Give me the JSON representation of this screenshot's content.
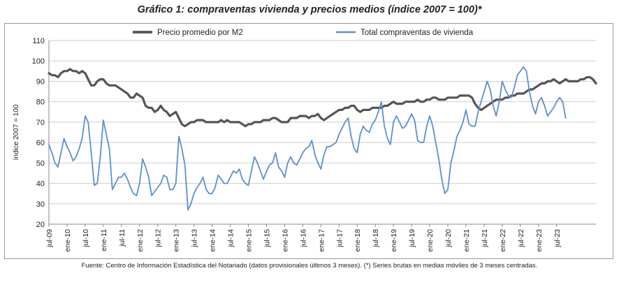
{
  "figure": {
    "title": "Gráfico 1: compraventas vivienda y precios medios (índice 2007 = 100)*",
    "footnote": "Fuente: Centro de Información Estadística del Notariado (datos provisionales últimos 3 meses). (*) Series brutas en medias móviles de 3 meses centradas."
  },
  "colors": {
    "price": "#555555",
    "sales": "#5b8fd1",
    "grid": "#cfcfcf",
    "axis": "#8a8a8a",
    "text": "#222222"
  },
  "chart_data": {
    "type": "line",
    "title": "Gráfico 1: compraventas vivienda y precios medios (índice 2007 = 100)*",
    "ylabel": "índice 2007 = 100",
    "xlabel": "",
    "ylim": [
      20,
      110
    ],
    "yticks": [
      20,
      30,
      40,
      50,
      60,
      70,
      80,
      90,
      100,
      110
    ],
    "grid": "horizontal",
    "legend_position": "top",
    "x_start": "jul-09",
    "x_end": "jul-23",
    "x_tick_labels": [
      "jul-09",
      "ene-10",
      "jul-10",
      "ene-11",
      "jul-11",
      "ene-12",
      "jul-12",
      "ene-13",
      "jul-13",
      "ene-14",
      "jul-14",
      "ene-15",
      "jul-15",
      "ene-16",
      "jul-16",
      "ene-17",
      "jul-17",
      "ene-18",
      "jul-18",
      "ene-19",
      "jul-19",
      "ene-20",
      "jul-20",
      "ene-21",
      "jul-21",
      "ene-22",
      "jul-22",
      "ene-23",
      "jul-23"
    ],
    "series": [
      {
        "name": "Precio promedio por M2",
        "color": "#555555",
        "values": [
          94,
          93,
          93,
          92,
          94,
          95,
          95,
          96,
          95,
          95,
          94,
          95,
          94,
          91,
          88,
          88,
          90,
          91,
          91,
          89,
          88,
          88,
          88,
          87,
          86,
          85,
          84,
          82,
          82,
          84,
          83,
          82,
          78,
          77,
          77,
          75,
          76,
          78,
          76,
          75,
          73,
          74,
          75,
          72,
          69,
          68,
          69,
          70,
          70,
          71,
          71,
          71,
          70,
          70,
          70,
          70,
          70,
          71,
          70,
          71,
          70,
          70,
          70,
          70,
          69,
          68,
          69,
          69,
          70,
          70,
          70,
          71,
          71,
          71,
          72,
          72,
          71,
          70,
          70,
          70,
          72,
          72,
          72,
          73,
          73,
          73,
          72,
          73,
          73,
          74,
          72,
          71,
          72,
          73,
          74,
          75,
          76,
          76,
          77,
          77,
          78,
          78,
          76,
          75,
          76,
          76,
          76,
          77,
          77,
          77,
          77,
          78,
          78,
          79,
          80,
          79,
          79,
          79,
          80,
          80,
          80,
          80,
          81,
          80,
          80,
          81,
          81,
          82,
          82,
          81,
          81,
          81,
          82,
          82,
          82,
          82,
          83,
          83,
          83,
          83,
          82,
          79,
          77,
          76,
          77,
          78,
          79,
          80,
          81,
          81,
          81,
          82,
          82,
          83,
          83,
          84,
          84,
          84,
          85,
          86,
          86,
          87,
          88,
          89,
          89,
          90,
          90,
          91,
          90,
          89,
          90,
          91,
          90,
          90,
          90,
          90,
          91,
          91,
          92,
          92,
          91,
          89
        ]
      },
      {
        "name": "Total compraventas de vivienda",
        "color": "#5b8fd1",
        "values": [
          59,
          55,
          50,
          48,
          55,
          62,
          58,
          55,
          51,
          53,
          57,
          62,
          73,
          70,
          55,
          39,
          40,
          53,
          71,
          64,
          57,
          37,
          40,
          43,
          43,
          45,
          42,
          38,
          35,
          34,
          40,
          52,
          48,
          43,
          34,
          36,
          38,
          40,
          44,
          43,
          37,
          37,
          40,
          63,
          57,
          49,
          27,
          30,
          35,
          38,
          40,
          43,
          37,
          35,
          35,
          38,
          44,
          42,
          40,
          40,
          43,
          46,
          45,
          47,
          42,
          40,
          39,
          46,
          53,
          50,
          46,
          42,
          46,
          49,
          50,
          55,
          48,
          46,
          43,
          50,
          53,
          50,
          49,
          52,
          55,
          57,
          58,
          61,
          54,
          50,
          47,
          54,
          58,
          58,
          59,
          60,
          64,
          67,
          70,
          72,
          63,
          57,
          55,
          64,
          68,
          66,
          65,
          69,
          71,
          75,
          80,
          68,
          62,
          59,
          70,
          73,
          70,
          67,
          68,
          71,
          74,
          71,
          61,
          60,
          60,
          68,
          73,
          68,
          60,
          52,
          42,
          35,
          37,
          50,
          56,
          63,
          66,
          70,
          76,
          69,
          68,
          68,
          75,
          80,
          85,
          90,
          86,
          78,
          73,
          80,
          90,
          86,
          83,
          82,
          87,
          93,
          95,
          97,
          95,
          85,
          78,
          74,
          80,
          82,
          78,
          73,
          75,
          77,
          80,
          82,
          80,
          72
        ]
      }
    ]
  }
}
